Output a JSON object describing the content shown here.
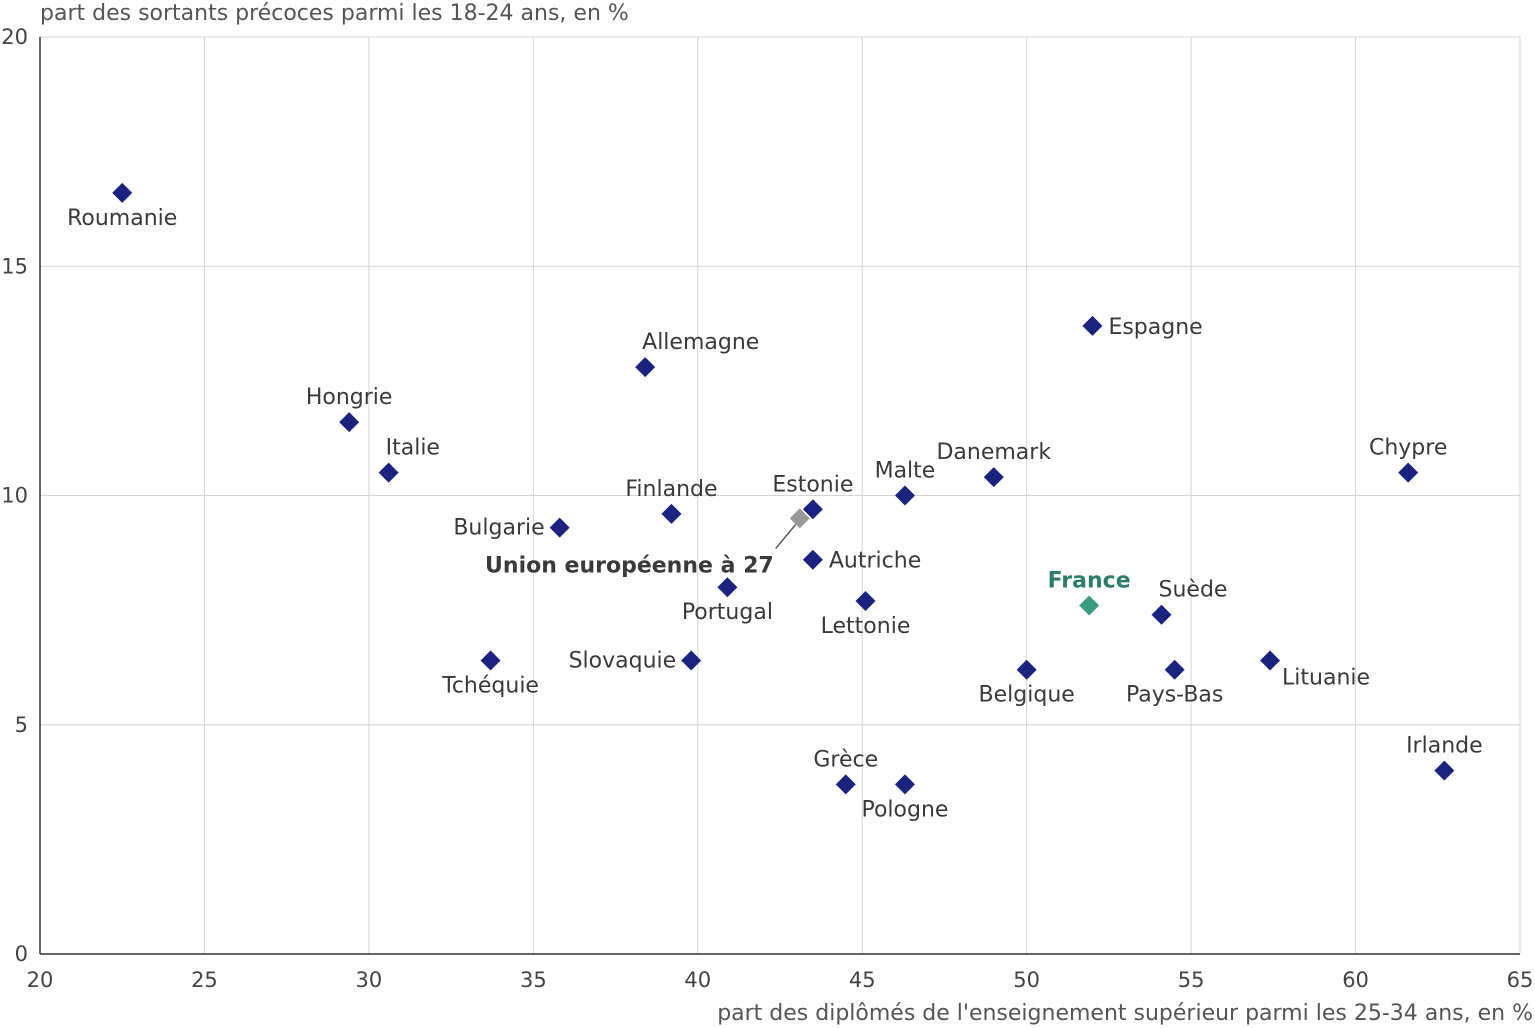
{
  "chart_data": {
    "type": "scatter",
    "title": "",
    "xlabel": "part des diplômés de l'enseignement supérieur parmi les 25-34 ans, en %",
    "ylabel": "part des sortants précoces parmi les 18-24 ans, en %",
    "xlim": [
      20,
      65
    ],
    "ylim": [
      0,
      20
    ],
    "xticks": [
      20,
      25,
      30,
      35,
      40,
      45,
      50,
      55,
      60,
      65
    ],
    "yticks": [
      0,
      5,
      10,
      15,
      20
    ],
    "grid": true,
    "colors": {
      "default": "#1a237e",
      "eu": "#999999",
      "france": "#3a9b82",
      "france_label": "#2e7d6b",
      "leader": "#555555"
    },
    "points": [
      {
        "name": "Roumanie",
        "x": 22.5,
        "y": 16.6,
        "label_pos": "below"
      },
      {
        "name": "Hongrie",
        "x": 29.4,
        "y": 11.6,
        "label_pos": "above"
      },
      {
        "name": "Italie",
        "x": 30.6,
        "y": 10.5,
        "label_pos": "above-right"
      },
      {
        "name": "Bulgarie",
        "x": 35.8,
        "y": 9.3,
        "label_pos": "left"
      },
      {
        "name": "Tchéquie",
        "x": 33.7,
        "y": 6.4,
        "label_pos": "below"
      },
      {
        "name": "Allemagne",
        "x": 38.4,
        "y": 12.8,
        "label_pos": "above-right"
      },
      {
        "name": "Finlande",
        "x": 39.2,
        "y": 9.6,
        "label_pos": "above"
      },
      {
        "name": "Slovaquie",
        "x": 39.8,
        "y": 6.4,
        "label_pos": "left"
      },
      {
        "name": "Portugal",
        "x": 40.9,
        "y": 8.0,
        "label_pos": "below"
      },
      {
        "name": "Union européenne à 27",
        "x": 43.1,
        "y": 9.5,
        "label_pos": "below-left",
        "highlight": "eu"
      },
      {
        "name": "Estonie",
        "x": 43.5,
        "y": 9.7,
        "label_pos": "above"
      },
      {
        "name": "Autriche",
        "x": 43.5,
        "y": 8.6,
        "label_pos": "right"
      },
      {
        "name": "Grèce",
        "x": 44.5,
        "y": 3.7,
        "label_pos": "above"
      },
      {
        "name": "Lettonie",
        "x": 45.1,
        "y": 7.7,
        "label_pos": "below"
      },
      {
        "name": "Malte",
        "x": 46.3,
        "y": 10.0,
        "label_pos": "above"
      },
      {
        "name": "Pologne",
        "x": 46.3,
        "y": 3.7,
        "label_pos": "below"
      },
      {
        "name": "Danemark",
        "x": 49.0,
        "y": 10.4,
        "label_pos": "above"
      },
      {
        "name": "Belgique",
        "x": 50.0,
        "y": 6.2,
        "label_pos": "below"
      },
      {
        "name": "France",
        "x": 51.9,
        "y": 7.6,
        "label_pos": "above",
        "highlight": "france"
      },
      {
        "name": "Espagne",
        "x": 52.0,
        "y": 13.7,
        "label_pos": "right"
      },
      {
        "name": "Suède",
        "x": 54.1,
        "y": 7.4,
        "label_pos": "above-right"
      },
      {
        "name": "Pays-Bas",
        "x": 54.5,
        "y": 6.2,
        "label_pos": "below"
      },
      {
        "name": "Lituanie",
        "x": 57.4,
        "y": 6.4,
        "label_pos": "below-right"
      },
      {
        "name": "Chypre",
        "x": 61.6,
        "y": 10.5,
        "label_pos": "above"
      },
      {
        "name": "Irlande",
        "x": 62.7,
        "y": 4.0,
        "label_pos": "above"
      }
    ]
  }
}
